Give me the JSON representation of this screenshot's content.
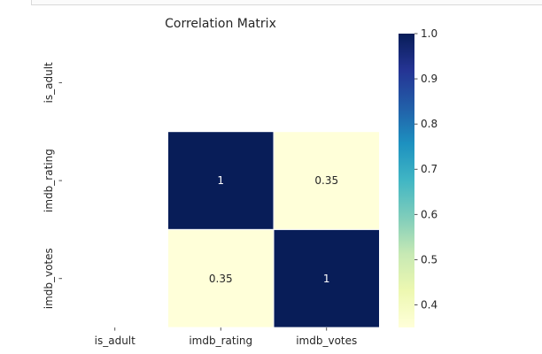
{
  "chart_data": {
    "type": "heatmap",
    "title": "Correlation Matrix",
    "xlabel": "",
    "ylabel": "",
    "rows": [
      "is_adult",
      "imdb_rating",
      "imdb_votes"
    ],
    "columns": [
      "is_adult",
      "imdb_rating",
      "imdb_votes"
    ],
    "values": [
      [
        null,
        null,
        null
      ],
      [
        null,
        1,
        0.35
      ],
      [
        null,
        0.35,
        1
      ]
    ],
    "annotations": [
      [
        "",
        "",
        ""
      ],
      [
        "",
        "1",
        "0.35"
      ],
      [
        "",
        "0.35",
        "1"
      ]
    ],
    "colormap": "YlGnBu",
    "colorbar": {
      "min": 0.35,
      "max": 1.0,
      "ticks": [
        1.0,
        0.9,
        0.8,
        0.7,
        0.6,
        0.5,
        0.4
      ],
      "tick_labels": [
        "1.0",
        "0.9",
        "0.8",
        "0.7",
        "0.6",
        "0.5",
        "0.4"
      ]
    },
    "colors": {
      "stops": [
        "#ffffd9",
        "#edf8b1",
        "#c7e9b4",
        "#7fcdbb",
        "#41b6c4",
        "#1d91c0",
        "#225ea8",
        "#253494",
        "#081d58"
      ],
      "annotation_light": "#ffffff",
      "annotation_dark": "#262626"
    }
  }
}
